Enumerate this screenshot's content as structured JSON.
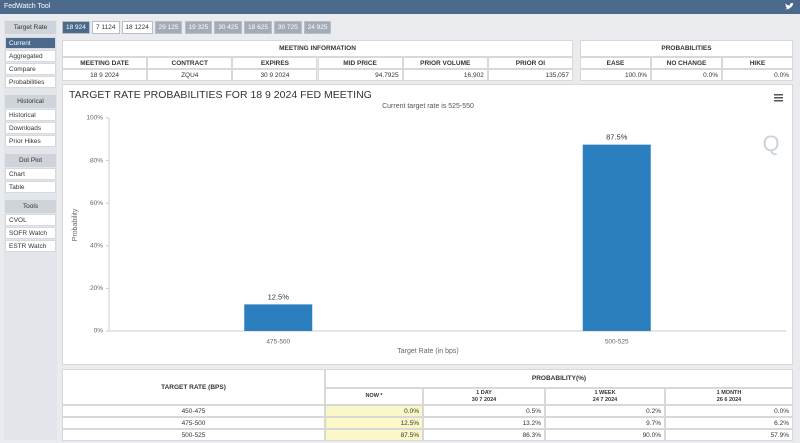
{
  "header": {
    "title": "FedWatch Tool"
  },
  "tabs": [
    "18 924",
    "7 1124",
    "18 1224",
    "29 125",
    "19 325",
    "30 425",
    "18 625",
    "30 725",
    "24 925"
  ],
  "sidebar": [
    {
      "title": "Target Rate",
      "items": [
        "Current",
        "Aggregated",
        "Compare",
        "Probabilities"
      ]
    },
    {
      "title": "Historical",
      "items": [
        "Historical",
        "Downloads",
        "Prior Hikes"
      ]
    },
    {
      "title": "Dot Plot",
      "items": [
        "Chart",
        "Table"
      ]
    },
    {
      "title": "Tools",
      "items": [
        "CVOL",
        "SOFR Watch",
        "ESTR Watch"
      ]
    }
  ],
  "meeting_information": {
    "title": "MEETING INFORMATION",
    "columns": [
      "MEETING DATE",
      "CONTRACT",
      "EXPIRES",
      "MID PRICE",
      "PRIOR VOLUME",
      "PRIOR OI"
    ],
    "values": [
      "18 9 2024",
      "ZQU4",
      "30 9 2024",
      "94.7925",
      "16,902",
      "135,057"
    ]
  },
  "probabilities": {
    "title": "PROBABILITIES",
    "columns": [
      "EASE",
      "NO CHANGE",
      "HIKE"
    ],
    "values": [
      "100.0%",
      "0.0%",
      "0.0%"
    ]
  },
  "chart_data": {
    "type": "bar",
    "title": "TARGET RATE PROBABILITIES FOR 18 9 2024 FED MEETING",
    "subtitle": "Current target rate is 525-550",
    "x_label": "Target Rate (in bps)",
    "y_label": "Probability",
    "categories": [
      "475-500",
      "500-525"
    ],
    "values": [
      12.5,
      87.5
    ],
    "value_labels": [
      "12.5%",
      "87.5%"
    ],
    "color": "#2c7fbf",
    "ylim": [
      0,
      100
    ],
    "yticks": [
      {
        "value": 0,
        "label": "0%"
      },
      {
        "value": 20,
        "label": "20%"
      },
      {
        "value": 40,
        "label": "40%"
      },
      {
        "value": 60,
        "label": "60%"
      },
      {
        "value": 80,
        "label": "80%"
      },
      {
        "value": 100,
        "label": "100%"
      }
    ],
    "grid": false
  },
  "table": {
    "header": "TARGET RATE (BPS)",
    "group_header": "PROBABILITY(%)",
    "columns": [
      {
        "label": "NOW *"
      },
      {
        "label": "1 DAY",
        "date": "30 7 2024"
      },
      {
        "label": "1 WEEK",
        "date": "24 7 2024"
      },
      {
        "label": "1 MONTH",
        "date": "26 6 2024"
      }
    ],
    "rows": [
      [
        "450-475",
        "0.0%",
        "0.5%",
        "0.2%",
        "0.0%"
      ],
      [
        "475-500",
        "12.5%",
        "13.2%",
        "9.7%",
        "6.2%"
      ],
      [
        "500-525",
        "87.5%",
        "86.3%",
        "90.0%",
        "57.9%"
      ]
    ]
  }
}
